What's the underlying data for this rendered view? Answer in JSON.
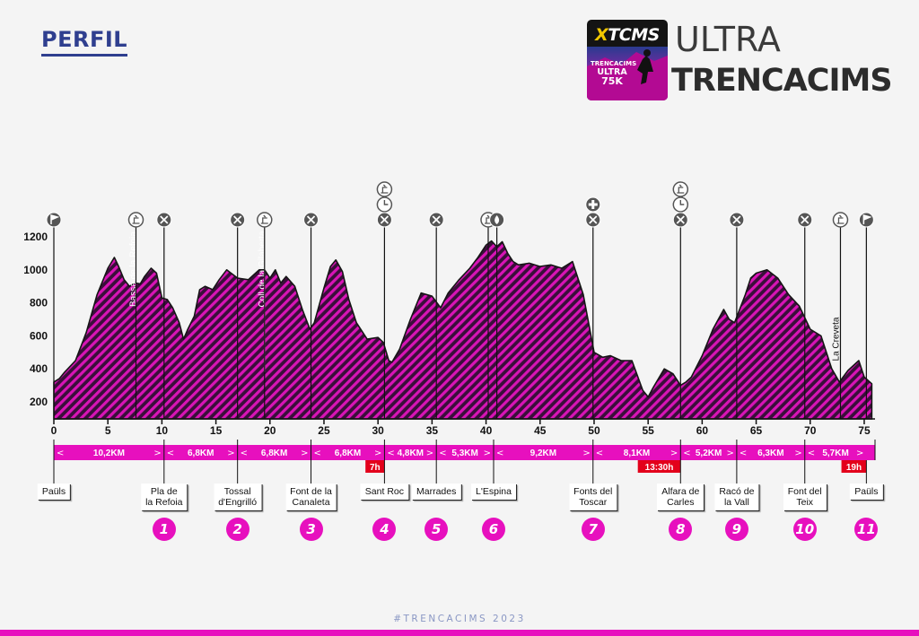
{
  "page": {
    "title": "PERFIL",
    "footer_hashtag": "#TRENCACIMS 2023"
  },
  "logo": {
    "badge_brand_x": "X",
    "badge_brand_rest": "TCMS",
    "badge_line1": "TRENCACIMS",
    "badge_line2": "ULTRA",
    "badge_line3": "75K",
    "ultra": "ULTRA",
    "name": "TRENCACIMS"
  },
  "colors": {
    "accent": "#e710be",
    "profile_fill": "#3a0f3a",
    "profile_stripe": "#d814b6",
    "title_blue": "#2f3f8f",
    "cutoff_red": "#e3001b"
  },
  "chart_data": {
    "type": "area",
    "title": "",
    "xlabel": "",
    "ylabel": "",
    "xlim": [
      0,
      76
    ],
    "ylim": [
      100,
      1300
    ],
    "x_ticks": [
      0,
      5,
      10,
      15,
      20,
      25,
      30,
      35,
      40,
      45,
      50,
      55,
      60,
      65,
      70,
      75
    ],
    "y_ticks": [
      200,
      400,
      600,
      800,
      1000,
      1200
    ],
    "grid": false,
    "series": [
      {
        "x": [
          0,
          0.5,
          1,
          2,
          3,
          4,
          5,
          5.6,
          6,
          6.5,
          7,
          7.5,
          8,
          8.4,
          9,
          9.5,
          10,
          10.5,
          11,
          11.6,
          12,
          12.4,
          13,
          13.5,
          14,
          14.7,
          15.3,
          16,
          17,
          18,
          18.5,
          19,
          19.5,
          20,
          20.5,
          21,
          21.5,
          22.3,
          23,
          23.7,
          24.1,
          25,
          25.6,
          26.1,
          26.7,
          27.3,
          28,
          29,
          30,
          30.5,
          31,
          31.3,
          32,
          33,
          34,
          35,
          35.8,
          36.5,
          37.5,
          38.5,
          39.2,
          40,
          40.5,
          41,
          41.5,
          42,
          42.5,
          43,
          44,
          45,
          46,
          47,
          48,
          49,
          50,
          50.8,
          51.5,
          52.5,
          53.5,
          54.5,
          55,
          55.5,
          56.5,
          57.3,
          58,
          58.5,
          59,
          60,
          61,
          62,
          62.5,
          63,
          64,
          64.5,
          65,
          66,
          67,
          68,
          69,
          70,
          71,
          72,
          72.7,
          73.5,
          74.5,
          75,
          75.7
        ],
        "y": [
          320,
          340,
          380,
          450,
          620,
          850,
          1010,
          1075,
          1020,
          940,
          900,
          920,
          915,
          960,
          1010,
          980,
          830,
          820,
          770,
          680,
          580,
          640,
          720,
          880,
          900,
          880,
          940,
          1000,
          950,
          940,
          970,
          1000,
          1000,
          950,
          1000,
          920,
          960,
          900,
          760,
          640,
          680,
          890,
          1020,
          1060,
          990,
          820,
          680,
          580,
          590,
          560,
          450,
          440,
          520,
          700,
          860,
          840,
          770,
          860,
          940,
          1010,
          1070,
          1150,
          1175,
          1140,
          1170,
          1100,
          1050,
          1030,
          1040,
          1020,
          1030,
          1010,
          1050,
          850,
          500,
          470,
          480,
          450,
          450,
          270,
          230,
          290,
          400,
          370,
          300,
          320,
          350,
          480,
          640,
          760,
          700,
          680,
          850,
          950,
          980,
          1000,
          950,
          850,
          780,
          640,
          600,
          400,
          320,
          390,
          450,
          350,
          310
        ]
      }
    ],
    "segments": [
      {
        "label": "10,2KM",
        "from": 0,
        "to": 10.2
      },
      {
        "label": "6,8KM",
        "from": 10.2,
        "to": 17
      },
      {
        "label": "6,8KM",
        "from": 17,
        "to": 23.8
      },
      {
        "label": "6,8KM",
        "from": 23.8,
        "to": 30.6
      },
      {
        "label": "4,8KM",
        "from": 30.6,
        "to": 35.4
      },
      {
        "label": "5,3KM",
        "from": 35.4,
        "to": 40.7
      },
      {
        "label": "9,2KM",
        "from": 40.7,
        "to": 49.9
      },
      {
        "label": "8,1KM",
        "from": 49.9,
        "to": 58
      },
      {
        "label": "5,2KM",
        "from": 58,
        "to": 63.2
      },
      {
        "label": "6,3KM",
        "from": 63.2,
        "to": 69.5
      },
      {
        "label": "5,7KM",
        "from": 69.5,
        "to": 75.2
      }
    ],
    "cutoffs": [
      {
        "label": "7h",
        "x": 30.6
      },
      {
        "label": "13:30h",
        "x": 58
      },
      {
        "label": "19h",
        "x": 75.2
      }
    ],
    "annotations": [
      {
        "text": "Bassa de la Refoia",
        "x": 7.6
      },
      {
        "text": "Coll de la Gilaberta",
        "x": 19.5
      },
      {
        "text": "La Creveta",
        "x": 72.8
      }
    ],
    "markers": [
      {
        "x": 0,
        "icons": [
          "flag-icon"
        ]
      },
      {
        "x": 7.6,
        "icons": [
          "timing-icon"
        ]
      },
      {
        "x": 10.2,
        "icons": [
          "food-icon"
        ]
      },
      {
        "x": 17,
        "icons": [
          "food-icon"
        ]
      },
      {
        "x": 19.5,
        "icons": [
          "timing-icon"
        ]
      },
      {
        "x": 23.8,
        "icons": [
          "food-icon"
        ]
      },
      {
        "x": 30.6,
        "icons": [
          "timing-icon",
          "clock-icon",
          "food-icon"
        ]
      },
      {
        "x": 35.4,
        "icons": [
          "food-icon"
        ]
      },
      {
        "x": 40.2,
        "icons": [
          "timing-icon"
        ]
      },
      {
        "x": 41,
        "icons": [
          "water-icon"
        ]
      },
      {
        "x": 49.9,
        "icons": [
          "first-aid-icon",
          "food-icon"
        ]
      },
      {
        "x": 58,
        "icons": [
          "timing-icon",
          "clock-icon",
          "food-icon"
        ]
      },
      {
        "x": 63.2,
        "icons": [
          "food-icon"
        ]
      },
      {
        "x": 69.5,
        "icons": [
          "food-icon"
        ]
      },
      {
        "x": 72.8,
        "icons": [
          "timing-icon"
        ]
      },
      {
        "x": 75.2,
        "icons": [
          "flag-icon"
        ]
      }
    ],
    "stops": [
      {
        "x": 0,
        "name": "Paüls",
        "num": ""
      },
      {
        "x": 10.2,
        "name": "Pla de\nla Refoia",
        "num": "1"
      },
      {
        "x": 17,
        "name": "Tossal\nd'Engrilló",
        "num": "2"
      },
      {
        "x": 23.8,
        "name": "Font de la\nCanaleta",
        "num": "3"
      },
      {
        "x": 30.6,
        "name": "Sant Roc",
        "num": "4"
      },
      {
        "x": 35.4,
        "name": "Marrades",
        "num": "5"
      },
      {
        "x": 40.7,
        "name": "L'Espina",
        "num": "6"
      },
      {
        "x": 49.9,
        "name": "Fonts del\nToscar",
        "num": "7"
      },
      {
        "x": 58,
        "name": "Alfara de\nCarles",
        "num": "8"
      },
      {
        "x": 63.2,
        "name": "Racó de\nla Vall",
        "num": "9"
      },
      {
        "x": 69.5,
        "name": "Font del\nTeix",
        "num": "10"
      },
      {
        "x": 75.2,
        "name": "Paüls",
        "num": "11"
      }
    ]
  }
}
